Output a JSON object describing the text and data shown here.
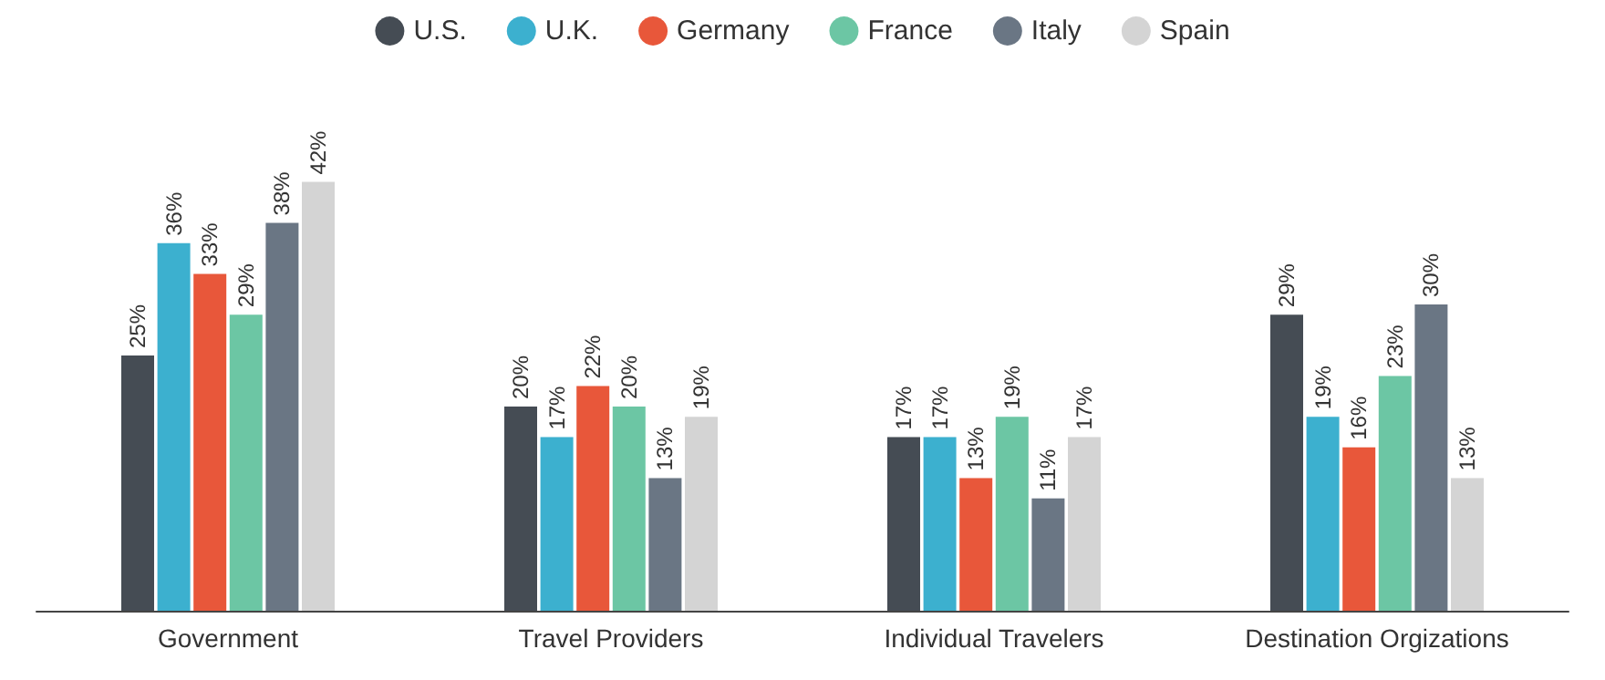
{
  "chart_data": {
    "type": "bar",
    "categories": [
      "Government",
      "Travel Providers",
      "Individual Travelers",
      "Destination Orgizations"
    ],
    "series": [
      {
        "name": "U.S.",
        "color": "#454c54",
        "values": [
          25,
          20,
          17,
          29
        ],
        "value_labels": [
          "25%",
          "20%",
          "17%",
          "29%"
        ]
      },
      {
        "name": "U.K.",
        "color": "#3cb0cf",
        "values": [
          36,
          17,
          17,
          19
        ],
        "value_labels": [
          "36%",
          "17%",
          "17%",
          "19%"
        ]
      },
      {
        "name": "Germany",
        "color": "#e8573a",
        "values": [
          33,
          22,
          13,
          16
        ],
        "value_labels": [
          "33%",
          "22%",
          "13%",
          "16%"
        ]
      },
      {
        "name": "France",
        "color": "#6cc6a4",
        "values": [
          29,
          20,
          19,
          23
        ],
        "value_labels": [
          "29%",
          "20%",
          "19%",
          "23%"
        ]
      },
      {
        "name": "Italy",
        "color": "#6a7684",
        "values": [
          38,
          13,
          11,
          30
        ],
        "value_labels": [
          "38%",
          "13%",
          "11%",
          "30%"
        ]
      },
      {
        "name": "Spain",
        "color": "#d4d4d4",
        "values": [
          42,
          19,
          17,
          13
        ],
        "value_labels": [
          "42%",
          "19%",
          "17%",
          "13%"
        ]
      }
    ],
    "legend": "top",
    "grid": false
  }
}
